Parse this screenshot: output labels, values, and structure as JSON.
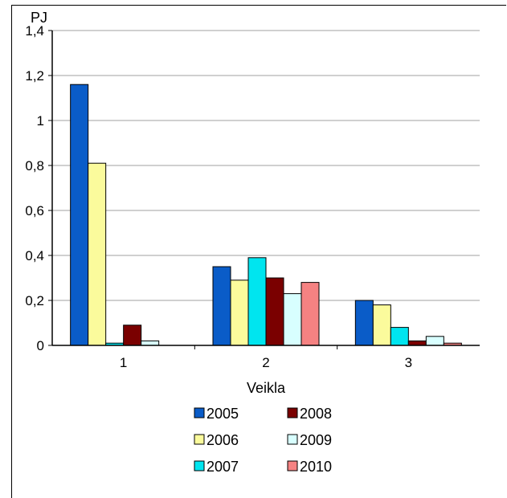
{
  "chart_data": {
    "type": "bar",
    "title": "",
    "ylabel": "PJ",
    "xlabel": "Veikla",
    "categories": [
      "1",
      "2",
      "3"
    ],
    "ylim": [
      0,
      1.4
    ],
    "yticks": [
      "0",
      "0,2",
      "0,4",
      "0,6",
      "0,8",
      "1",
      "1,2",
      "1,4"
    ],
    "grid": true,
    "legend_position": "bottom",
    "series": [
      {
        "name": "2005",
        "color": "#0a5cc8",
        "values": [
          1.16,
          0.35,
          0.2
        ]
      },
      {
        "name": "2006",
        "color": "#fbfb9c",
        "values": [
          0.81,
          0.29,
          0.18
        ]
      },
      {
        "name": "2007",
        "color": "#00e5ef",
        "values": [
          0.01,
          0.39,
          0.08
        ]
      },
      {
        "name": "2008",
        "color": "#7a0000",
        "values": [
          0.09,
          0.3,
          0.02
        ]
      },
      {
        "name": "2009",
        "color": "#d8ffff",
        "values": [
          0.02,
          0.23,
          0.04
        ]
      },
      {
        "name": "2010",
        "color": "#f58282",
        "values": [
          0.0,
          0.28,
          0.01
        ]
      }
    ]
  }
}
